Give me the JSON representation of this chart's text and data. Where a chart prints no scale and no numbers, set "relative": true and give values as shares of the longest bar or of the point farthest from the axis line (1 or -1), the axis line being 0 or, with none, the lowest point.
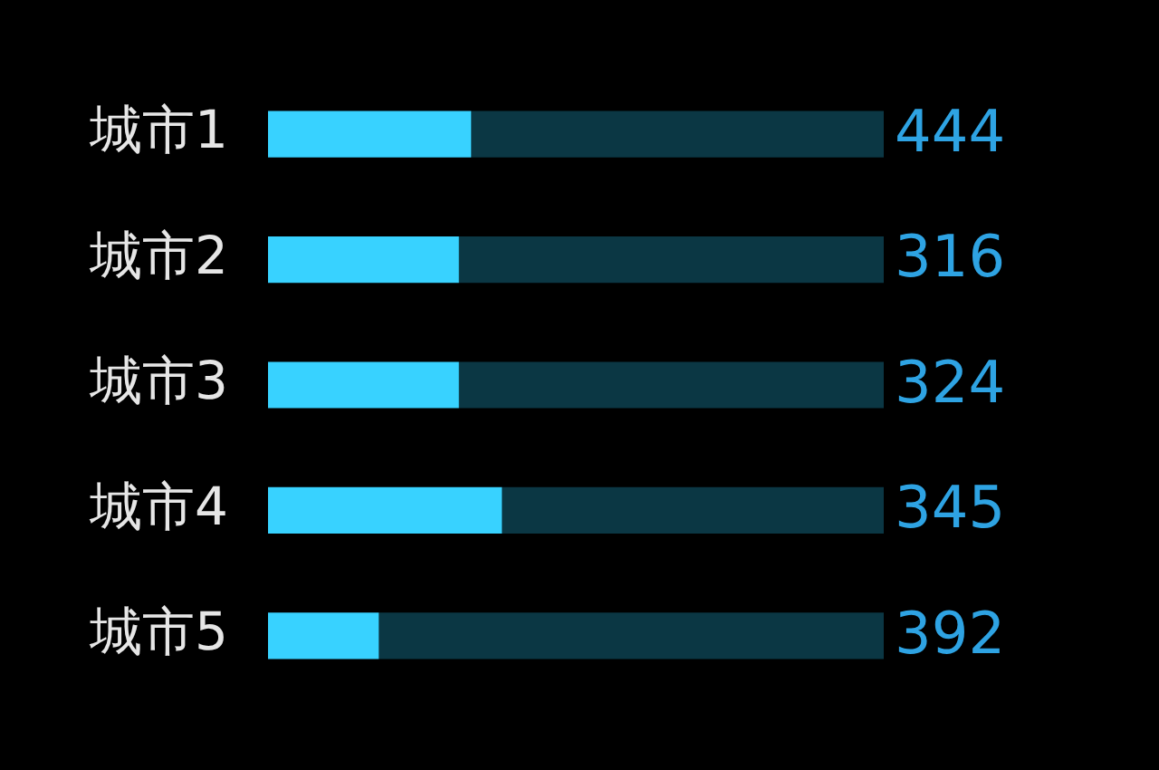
{
  "chart_data": {
    "type": "bar",
    "orientation": "horizontal",
    "stacked": true,
    "relative": true,
    "grid": false,
    "legend": false,
    "categories": [
      "城市1",
      "城市2",
      "城市3",
      "城市4",
      "城市5"
    ],
    "series": [
      {
        "color": "#38d2ff",
        "values": [
          0.33,
          0.31,
          0.31,
          0.38,
          0.18
        ]
      },
      {
        "color": "#0b3744",
        "values": [
          0.67,
          0.69,
          0.69,
          0.62,
          0.82
        ]
      }
    ],
    "annotations": [
      "444",
      "316",
      "324",
      "345",
      "392"
    ]
  }
}
